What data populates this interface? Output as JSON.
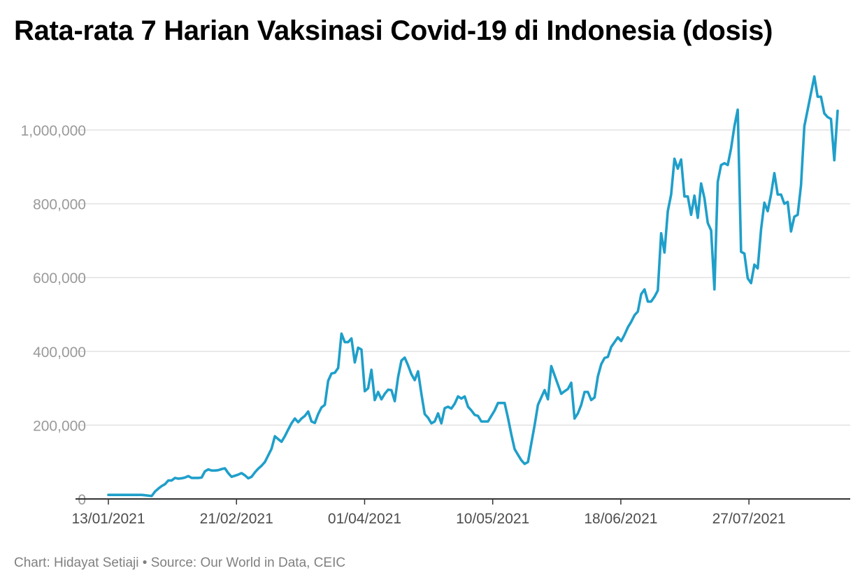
{
  "title": "Rata-rata 7 Harian Vaksinasi Covid-19 di Indonesia (dosis)",
  "footer": {
    "credit": "Chart: Hidayat Setiaji",
    "separator": " • ",
    "source": "Source: Our World in Data, CEIC"
  },
  "colors": {
    "line": "#1f9fca",
    "grid": "#e2e2e2",
    "axis": "#333333",
    "tick_y": "#9a9a9a",
    "tick_x": "#4d4d4d"
  },
  "chart_data": {
    "type": "line",
    "title": "Rata-rata 7 Harian Vaksinasi Covid-19 di Indonesia (dosis)",
    "xlabel": "",
    "ylabel": "",
    "x_start": "2021-01-13",
    "x_end": "2021-08-23",
    "ylim": [
      0,
      1150000
    ],
    "y_ticks": [
      0,
      200000,
      400000,
      600000,
      800000,
      1000000
    ],
    "y_tick_labels": [
      "0",
      "200,000",
      "400,000",
      "600,000",
      "800,000",
      "1,000,000"
    ],
    "x_ticks": [
      "2021-01-13",
      "2021-02-21",
      "2021-04-01",
      "2021-05-10",
      "2021-06-18",
      "2021-07-27"
    ],
    "x_tick_labels": [
      "13/01/2021",
      "21/02/2021",
      "01/04/2021",
      "10/05/2021",
      "18/06/2021",
      "27/07/2021"
    ],
    "grid": "horizontal",
    "legend": "none",
    "series": [
      {
        "values": [
          11000,
          11000,
          11000,
          11000,
          11000,
          11000,
          11000,
          11000,
          11000,
          11000,
          11000,
          10000,
          9000,
          8000,
          20000,
          28000,
          35000,
          40000,
          50000,
          50000,
          57000,
          55000,
          56000,
          58000,
          62000,
          57000,
          57000,
          57000,
          58000,
          75000,
          80000,
          77000,
          77000,
          78000,
          81000,
          83000,
          70000,
          60000,
          63000,
          66000,
          70000,
          64000,
          56000,
          60000,
          72000,
          82000,
          90000,
          100000,
          118000,
          136000,
          170000,
          162000,
          155000,
          170000,
          188000,
          205000,
          218000,
          208000,
          218000,
          225000,
          237000,
          210000,
          206000,
          230000,
          248000,
          255000,
          320000,
          340000,
          342000,
          355000,
          448000,
          425000,
          425000,
          435000,
          370000,
          410000,
          405000,
          292000,
          300000,
          350000,
          268000,
          290000,
          270000,
          285000,
          296000,
          295000,
          265000,
          330000,
          375000,
          383000,
          362000,
          338000,
          322000,
          346000,
          285000,
          230000,
          220000,
          205000,
          210000,
          232000,
          205000,
          246000,
          250000,
          245000,
          258000,
          278000,
          272000,
          278000,
          250000,
          240000,
          228000,
          225000,
          210000,
          210000,
          210000,
          225000,
          240000,
          260000,
          260000,
          260000,
          220000,
          175000,
          135000,
          120000,
          105000,
          95000,
          100000,
          150000,
          200000,
          255000,
          275000,
          295000,
          270000,
          360000,
          335000,
          310000,
          285000,
          292000,
          298000,
          315000,
          218000,
          232000,
          255000,
          290000,
          290000,
          268000,
          275000,
          332000,
          365000,
          382000,
          385000,
          412000,
          425000,
          438000,
          428000,
          445000,
          465000,
          480000,
          498000,
          508000,
          555000,
          568000,
          535000,
          535000,
          548000,
          565000,
          720000,
          668000,
          780000,
          825000,
          922000,
          895000,
          920000,
          820000,
          820000,
          770000,
          822000,
          762000,
          855000,
          815000,
          748000,
          728000,
          568000,
          860000,
          905000,
          910000,
          905000,
          950000,
          1010000,
          1055000,
          670000,
          665000,
          598000,
          585000,
          635000,
          625000,
          730000,
          803000,
          780000,
          825000,
          883000,
          825000,
          825000,
          800000,
          805000,
          725000,
          765000,
          770000,
          850000,
          1010000,
          1055000,
          1100000,
          1145000,
          1090000,
          1090000,
          1045000,
          1035000,
          1030000,
          918000,
          1052000
        ]
      }
    ]
  }
}
